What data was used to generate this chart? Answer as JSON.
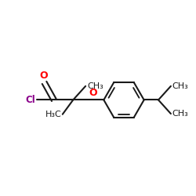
{
  "bg_color": "#ffffff",
  "bond_color": "#1a1a1a",
  "cl_color": "#8B008B",
  "o_color": "#FF0000",
  "line_width": 1.5,
  "font_size": 8.5,
  "fig_size": [
    2.5,
    2.5
  ],
  "dpi": 100,
  "xlim": [
    0,
    10
  ],
  "ylim": [
    0,
    10
  ]
}
